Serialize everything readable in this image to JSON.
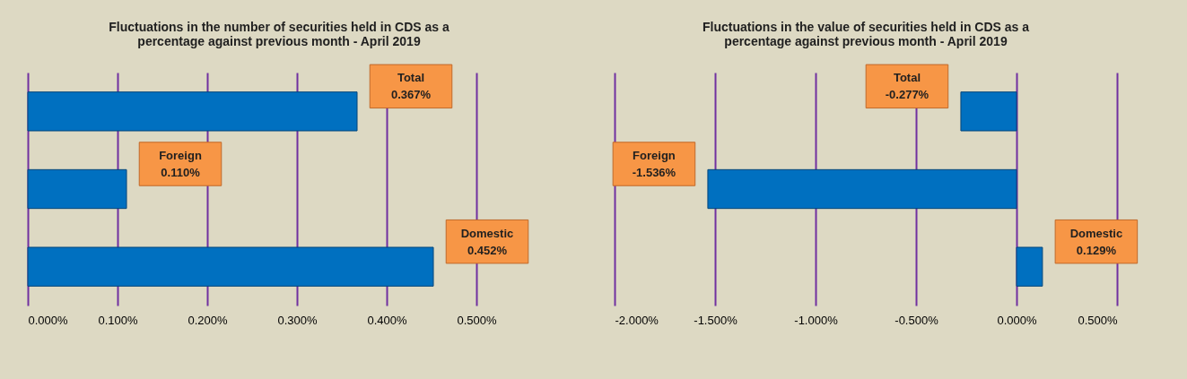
{
  "chart_data": [
    {
      "type": "bar",
      "orientation": "horizontal",
      "title": "Fluctuations in the number of securities held in CDS as a\npercentage against previous month - April 2019",
      "categories": [
        "Total",
        "Foreign",
        "Domestic"
      ],
      "series": [
        {
          "color": "#0070c0",
          "values": [
            0.367,
            0.11,
            0.452
          ]
        }
      ],
      "value_labels": [
        "0.367%",
        "0.110%",
        "0.452%"
      ],
      "xlim": [
        0,
        0.56
      ],
      "xticks": [
        {
          "value": 0,
          "label": "0.000%"
        },
        {
          "value": 0.1,
          "label": "0.100%"
        },
        {
          "value": 0.2,
          "label": "0.200%"
        },
        {
          "value": 0.3,
          "label": "0.300%"
        },
        {
          "value": 0.4,
          "label": "0.400%"
        },
        {
          "value": 0.5,
          "label": "0.500%"
        }
      ],
      "grid": "x",
      "tick_labels": "x"
    },
    {
      "type": "bar",
      "orientation": "horizontal",
      "title": "Fluctuations in the value of securities held in CDS as a\npercentage against previous month - April 2019",
      "categories": [
        "Total",
        "Foreign",
        "Domestic"
      ],
      "series": [
        {
          "color": "#0070c0",
          "values": [
            -0.277,
            -1.536,
            0.129
          ]
        }
      ],
      "value_labels": [
        "-0.277%",
        "-1.536%",
        "0.129%"
      ],
      "xlim": [
        -2,
        0.5
      ],
      "xticks": [
        {
          "value": -2,
          "label": "-2.000%"
        },
        {
          "value": -1.5,
          "label": "-1.500%"
        },
        {
          "value": -1,
          "label": "-1.000%"
        },
        {
          "value": -0.5,
          "label": "-0.500%"
        },
        {
          "value": 0,
          "label": "0.000%"
        },
        {
          "value": 0.5,
          "label": "0.500%"
        }
      ],
      "grid": "x",
      "tick_labels": "x"
    }
  ]
}
